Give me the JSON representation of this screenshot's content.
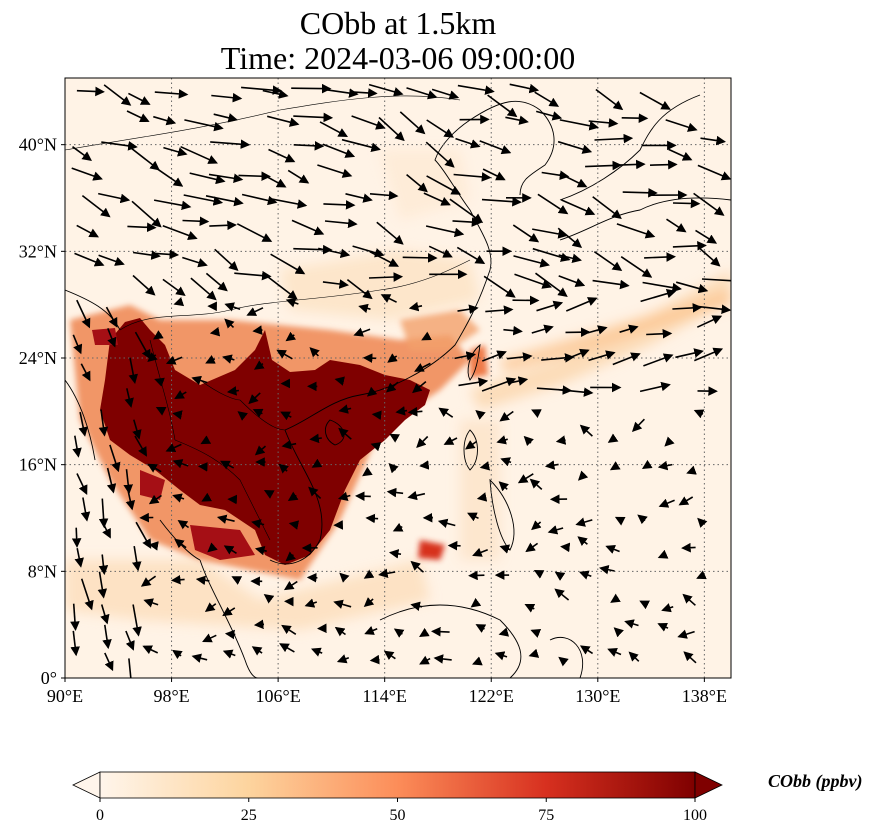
{
  "title": {
    "line1": "CObb at 1.5km",
    "line2": "Time: 2024-03-06 09:00:00"
  },
  "map": {
    "lon_range": [
      90,
      140
    ],
    "lat_range": [
      0,
      45
    ],
    "x_ticks": [
      "90°E",
      "98°E",
      "106°E",
      "114°E",
      "122°E",
      "130°E",
      "138°E"
    ],
    "y_ticks": [
      "0°",
      "8°N",
      "16°N",
      "24°N",
      "32°N",
      "40°N"
    ],
    "gridlines": true,
    "layers": [
      "coastlines",
      "country-borders",
      "wind-vectors",
      "CObb-concentration"
    ]
  },
  "colorbar": {
    "label": "CObb (ppbv)",
    "ticks": [
      "0",
      "25",
      "50",
      "75",
      "100"
    ],
    "range": [
      0,
      100
    ],
    "colormap": [
      "#fff5eb",
      "#fdd49e",
      "#fc8d59",
      "#d7301f",
      "#7f0000"
    ],
    "extend": "both"
  }
}
